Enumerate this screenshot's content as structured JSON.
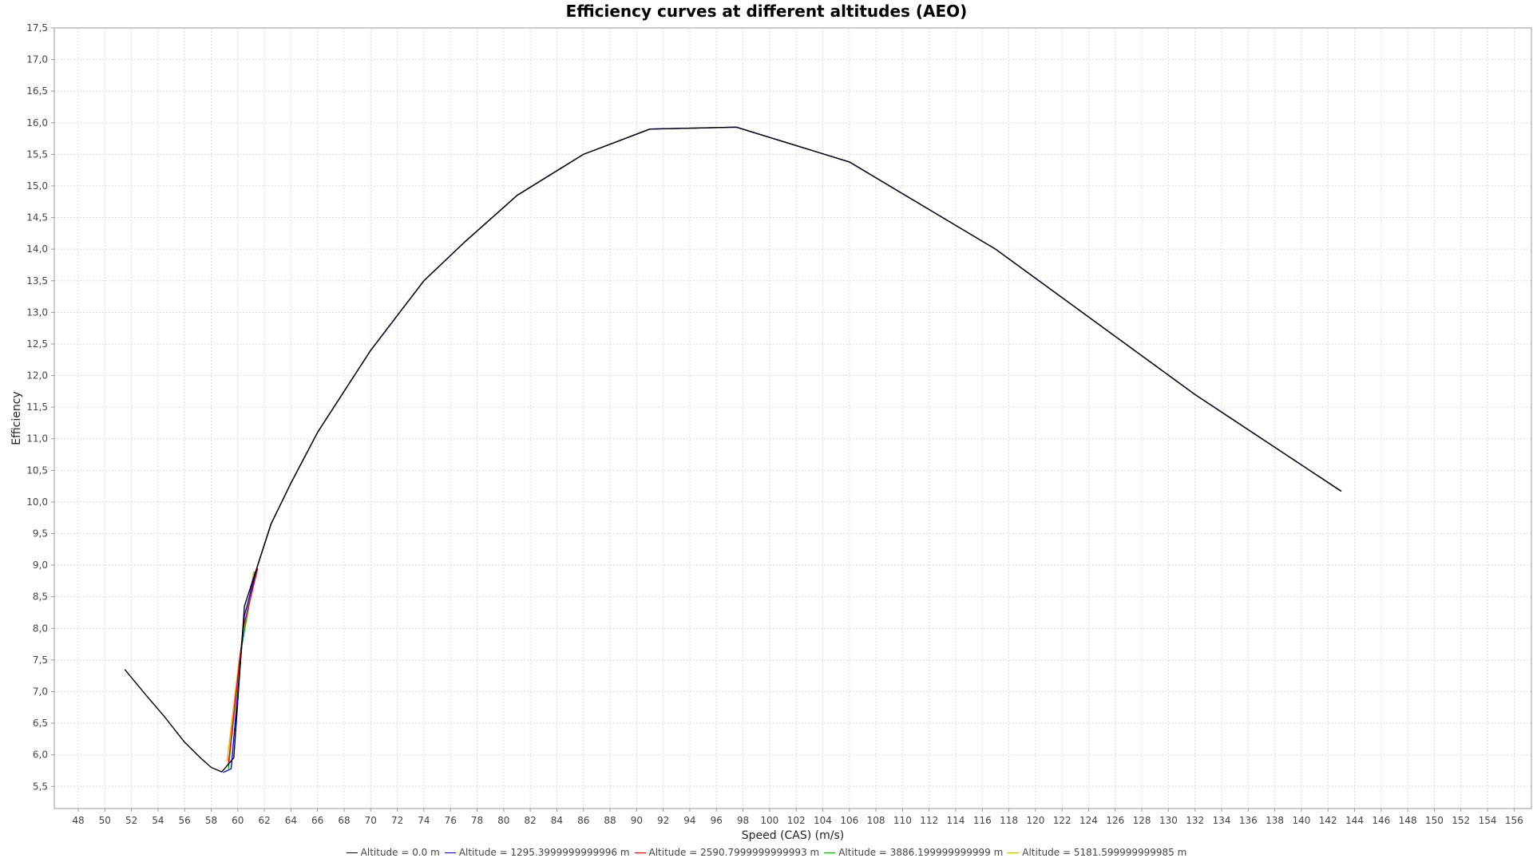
{
  "chart_data": {
    "type": "line",
    "title": "Efficiency curves at different altitudes (AEO)",
    "xlabel": "Speed (CAS) (m/s)",
    "ylabel": "Efficiency",
    "xlim": [
      46.2,
      157.3
    ],
    "ylim": [
      5.15,
      17.5
    ],
    "xticks": [
      48,
      50,
      52,
      54,
      56,
      58,
      60,
      62,
      64,
      66,
      68,
      70,
      72,
      74,
      76,
      78,
      80,
      82,
      84,
      86,
      88,
      90,
      92,
      94,
      96,
      98,
      100,
      102,
      104,
      106,
      108,
      110,
      112,
      114,
      116,
      118,
      120,
      122,
      124,
      126,
      128,
      130,
      132,
      134,
      136,
      138,
      140,
      142,
      144,
      146,
      148,
      150,
      152,
      154,
      156
    ],
    "yticks": [
      "5,5",
      "6,0",
      "6,5",
      "7,0",
      "7,5",
      "8,0",
      "8,5",
      "9,0",
      "9,5",
      "10,0",
      "10,5",
      "11,0",
      "11,5",
      "12,0",
      "12,5",
      "13,0",
      "13,5",
      "14,0",
      "14,5",
      "15,0",
      "15,5",
      "16,0",
      "16,5",
      "17,0",
      "17,5"
    ],
    "ytick_values": [
      5.5,
      6.0,
      6.5,
      7.0,
      7.5,
      8.0,
      8.5,
      9.0,
      9.5,
      10.0,
      10.5,
      11.0,
      11.5,
      12.0,
      12.5,
      13.0,
      13.5,
      14.0,
      14.5,
      15.0,
      15.5,
      16.0,
      16.5,
      17.0,
      17.5
    ],
    "grid": true,
    "legend_position": "bottom",
    "series": [
      {
        "name": "Altitude = 0.0 m",
        "color": "#000000",
        "x": [
          51.5,
          53,
          54.5,
          56,
          57.2,
          58,
          58.8,
          59.7,
          60.5,
          61.5,
          62.5,
          64,
          66,
          68,
          70,
          72,
          74,
          77,
          81,
          86,
          91,
          97.5,
          106,
          117,
          132,
          143
        ],
        "y": [
          7.35,
          6.97,
          6.6,
          6.2,
          5.95,
          5.8,
          5.73,
          5.95,
          8.35,
          9.0,
          9.65,
          10.3,
          11.1,
          11.75,
          12.4,
          12.95,
          13.5,
          14.1,
          14.85,
          15.5,
          15.9,
          15.93,
          15.38,
          14.0,
          11.7,
          10.17
        ]
      },
      {
        "name": "Altitude = 1295.3999999999996 m",
        "color": "#0000ff",
        "x": [
          58.9,
          59.5,
          60.5,
          61.5,
          62.5,
          64,
          66,
          68,
          70,
          72,
          74,
          77,
          81,
          86,
          91,
          97.5,
          106,
          117,
          132,
          143
        ],
        "y": [
          5.72,
          5.78,
          8.2,
          9.0,
          9.65,
          10.3,
          11.1,
          11.75,
          12.4,
          12.95,
          13.5,
          14.1,
          14.85,
          15.5,
          15.9,
          15.93,
          15.38,
          14.0,
          11.7,
          10.17
        ]
      },
      {
        "name": "Altitude = 2590.7999999999993 m",
        "color": "#ff0000",
        "x": [
          59.3,
          60.4,
          61.5
        ],
        "y": [
          5.85,
          8.0,
          8.95
        ]
      },
      {
        "name": "Altitude = 3886.199999999999 m",
        "color": "#00c000",
        "x": [
          59.3,
          60.2,
          61.3
        ],
        "y": [
          5.78,
          7.6,
          8.9
        ]
      },
      {
        "name": "Altitude = 5181.599999999985 m",
        "color": "#e0b000",
        "x": [
          59.2,
          60.1,
          61.2
        ],
        "y": [
          5.9,
          7.5,
          8.9
        ]
      }
    ]
  }
}
